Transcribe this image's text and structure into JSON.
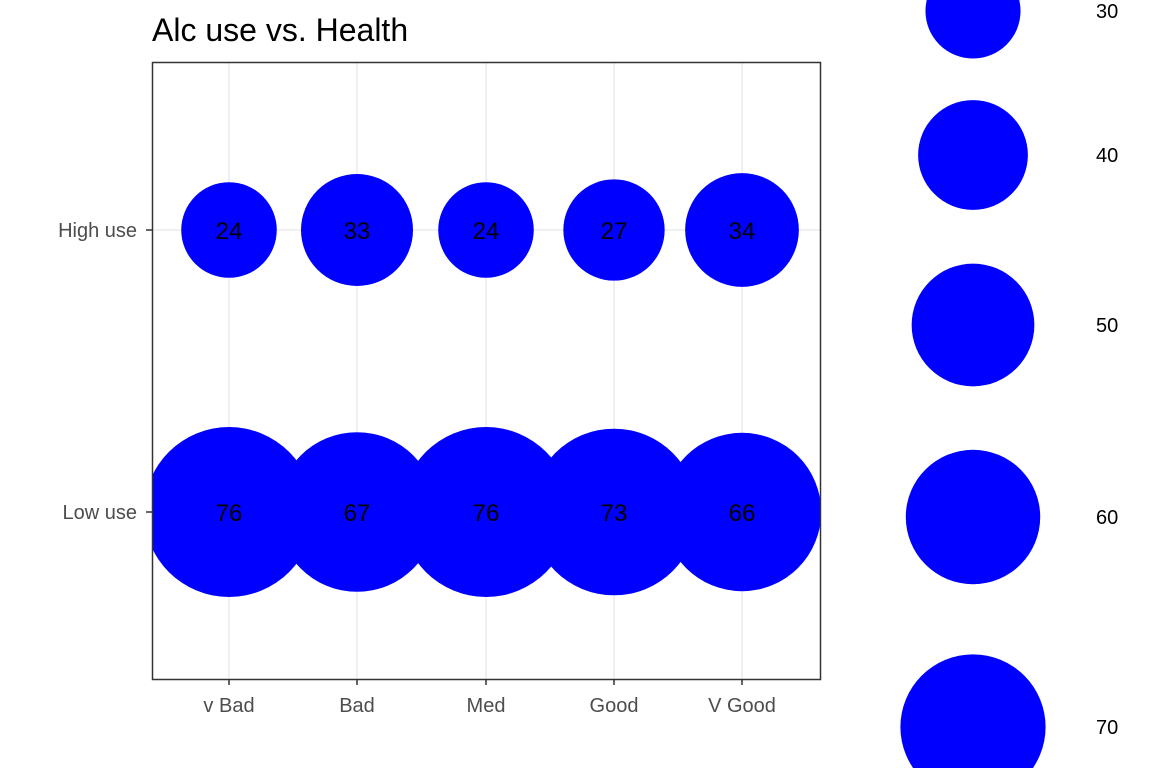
{
  "chart_data": {
    "type": "scatter",
    "title": "Alc use vs. Health",
    "xlabel": "",
    "ylabel": "",
    "x_categories": [
      "v Bad",
      "Bad",
      "Med",
      "Good",
      "V Good"
    ],
    "y_categories": [
      "Low use",
      "High use"
    ],
    "points": [
      {
        "x": "v Bad",
        "y": "High use",
        "value": 24
      },
      {
        "x": "Bad",
        "y": "High use",
        "value": 33
      },
      {
        "x": "Med",
        "y": "High use",
        "value": 24
      },
      {
        "x": "Good",
        "y": "High use",
        "value": 27
      },
      {
        "x": "V Good",
        "y": "High use",
        "value": 34
      },
      {
        "x": "v Bad",
        "y": "Low use",
        "value": 76
      },
      {
        "x": "Bad",
        "y": "Low use",
        "value": 67
      },
      {
        "x": "Med",
        "y": "Low use",
        "value": 76
      },
      {
        "x": "Good",
        "y": "Low use",
        "value": 73
      },
      {
        "x": "V Good",
        "y": "Low use",
        "value": 66
      }
    ],
    "size_legend": {
      "title": "",
      "breaks": [
        30,
        40,
        50,
        60,
        70
      ],
      "position": "right"
    },
    "grid": true,
    "marker_color": "#0000ff",
    "label_color": "#000000"
  }
}
